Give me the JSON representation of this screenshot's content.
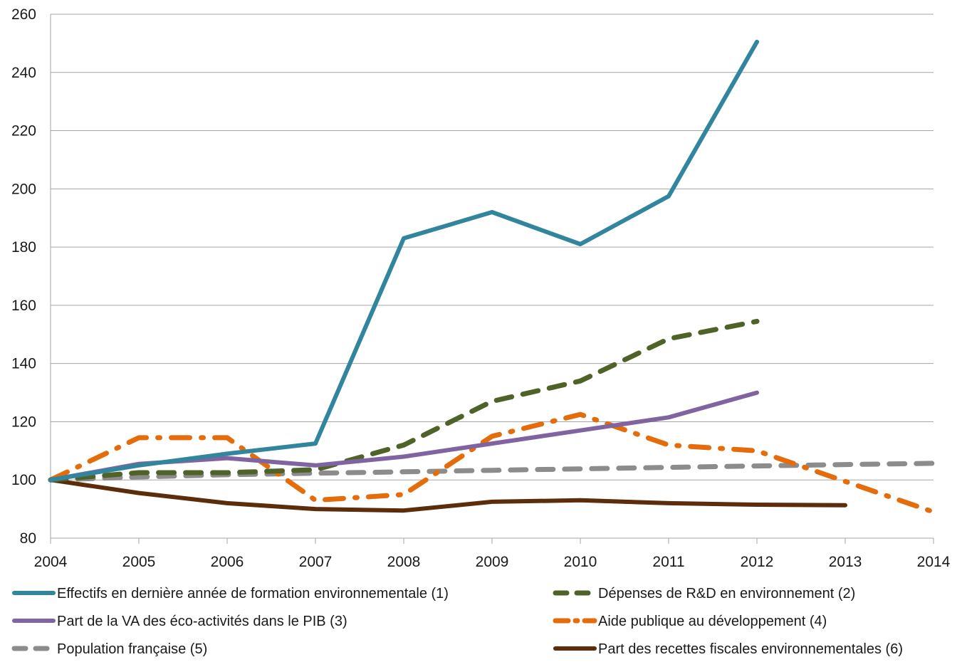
{
  "chart_data": {
    "type": "line",
    "title": "",
    "xlabel": "",
    "ylabel": "",
    "x": [
      2004,
      2005,
      2006,
      2007,
      2008,
      2009,
      2010,
      2011,
      2012,
      2013,
      2014
    ],
    "x_tick_labels": [
      "2004",
      "2005",
      "2006",
      "2007",
      "2008",
      "2009",
      "2010",
      "2011",
      "2012",
      "2013",
      "2014"
    ],
    "ylim": [
      80,
      260
    ],
    "y_ticks": [
      80,
      100,
      120,
      140,
      160,
      180,
      200,
      220,
      240,
      260
    ],
    "y_tick_labels": [
      "80",
      "100",
      "120",
      "140",
      "160",
      "180",
      "200",
      "220",
      "240",
      "260"
    ],
    "grid": "horizontal",
    "legend_position": "bottom",
    "series": [
      {
        "name": "Effectifs en dernière année de formation environnementale (1)",
        "color": "#31859C",
        "style": "solid",
        "values": [
          100,
          105,
          109,
          112.5,
          183,
          192,
          181,
          197.5,
          250.5,
          null,
          null
        ]
      },
      {
        "name": "Dépenses de R&D en environnement (2)",
        "color": "#4F6228",
        "style": "dash",
        "values": [
          100,
          102.5,
          102.5,
          103.5,
          112,
          127,
          134,
          148.5,
          154.5,
          null,
          null
        ]
      },
      {
        "name": "Part de la VA des éco-activités dans le PIB (3)",
        "color": "#8064A2",
        "style": "solid",
        "values": [
          100,
          105.5,
          107.5,
          105,
          108,
          112.5,
          117,
          121.5,
          130,
          null,
          null
        ]
      },
      {
        "name": "Aide publique au développement (4)",
        "color": "#E46C0A",
        "style": "dashdot",
        "values": [
          100,
          114.5,
          114.5,
          93,
          95,
          115,
          122.5,
          112,
          110,
          99.5,
          89
        ]
      },
      {
        "name": "Population française (5)",
        "color": "#8C8C8C",
        "style": "dash",
        "values": [
          100,
          101,
          101.8,
          102.3,
          102.8,
          103.3,
          103.8,
          104.3,
          104.8,
          105.3,
          105.7
        ]
      },
      {
        "name": "Part des recettes fiscales environnementales (6)",
        "color": "#5C2D0A",
        "style": "solid",
        "values": [
          100,
          95.5,
          92,
          90,
          89.5,
          92.5,
          93,
          92,
          91.5,
          91.3,
          null
        ]
      }
    ]
  }
}
